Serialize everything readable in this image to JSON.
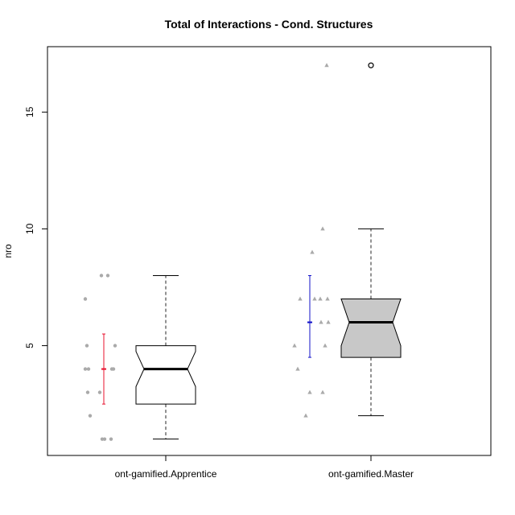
{
  "chart_data": {
    "type": "boxplot",
    "title": "Total of Interactions - Cond. Structures",
    "xlabel": "",
    "ylabel": "nro",
    "ylim": [
      0.3,
      17.8
    ],
    "yticks": [
      5,
      10,
      15
    ],
    "notched": true,
    "grid": false,
    "categories": [
      "ont-gamified.Apprentice",
      "ont-gamified.Master"
    ],
    "series": [
      {
        "name": "ont-gamified.Apprentice",
        "box": {
          "min": 1,
          "q1": 2.5,
          "median": 4,
          "q3": 5,
          "max": 8,
          "notch_low": 3.25,
          "notch_high": 4.75
        },
        "outliers": [],
        "box_color": "#ffffff",
        "mean": 4,
        "error_bar": [
          2.5,
          5.5
        ],
        "error_color": "#e8112d",
        "point_shape": "circle",
        "points": [
          7,
          8,
          8,
          5,
          5,
          4,
          4,
          4,
          4,
          3,
          3,
          2,
          1,
          1,
          1
        ]
      },
      {
        "name": "ont-gamified.Master",
        "box": {
          "min": 2,
          "q1": 4.5,
          "median": 6,
          "q3": 7,
          "max": 10,
          "notch_low": 5,
          "notch_high": 7
        },
        "outliers": [
          17
        ],
        "box_color": "#c8c8c8",
        "mean": 6,
        "error_bar": [
          4.5,
          8
        ],
        "error_color": "#1010c8",
        "point_shape": "triangle",
        "points": [
          17,
          10,
          9,
          7,
          7,
          7,
          7,
          6,
          6,
          5,
          5,
          4,
          3,
          3,
          2
        ]
      }
    ],
    "colors": {
      "points": "#aaaaaa",
      "whisker": "#777777",
      "frame": "#000000"
    }
  }
}
